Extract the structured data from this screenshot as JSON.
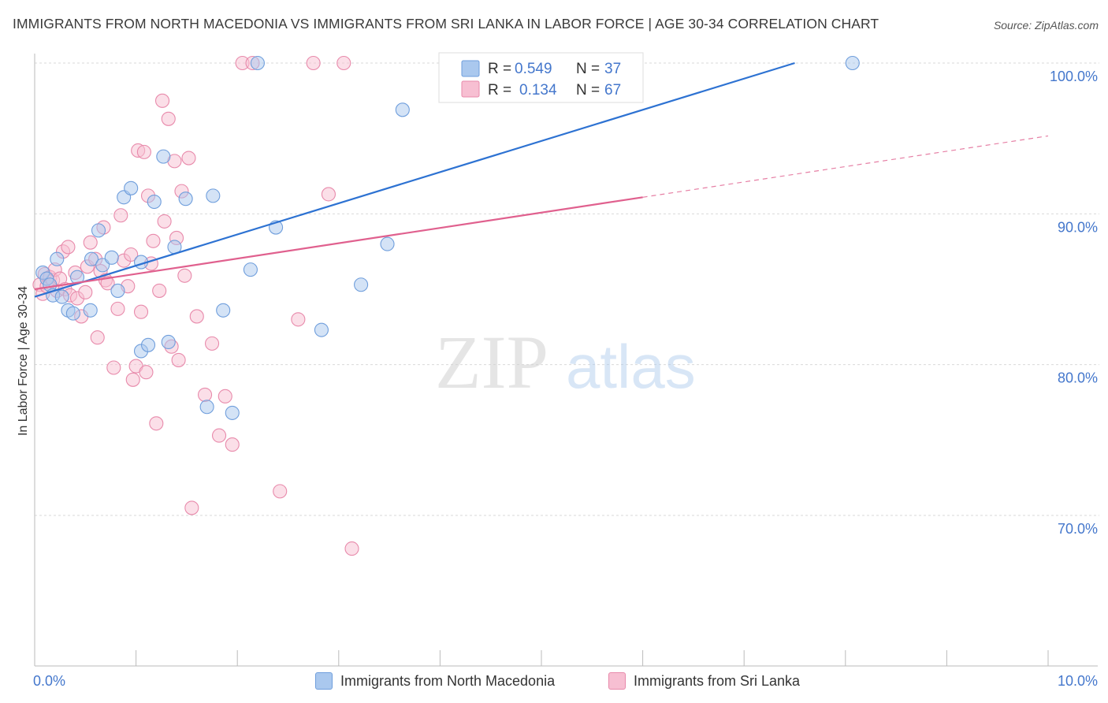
{
  "header": {
    "title": "IMMIGRANTS FROM NORTH MACEDONIA VS IMMIGRANTS FROM SRI LANKA IN LABOR FORCE | AGE 30-34 CORRELATION CHART",
    "source": "Source: ZipAtlas.com"
  },
  "watermark": {
    "zip": "ZIP",
    "atlas": "atlas"
  },
  "colors": {
    "blue_fill": "#aac8ee",
    "blue_stroke": "#6f9edc",
    "blue_line": "#2d72d2",
    "pink_fill": "#f7bfd2",
    "pink_stroke": "#e88aab",
    "pink_line": "#e0608e",
    "axis_label": "#4477cc",
    "grid": "#d9d9d9"
  },
  "legend_top": {
    "rows": [
      {
        "r_label": "R =",
        "r_value": "0.549",
        "n_label": "N =",
        "n_value": "37"
      },
      {
        "r_label": "R =",
        "r_value": "0.134",
        "n_label": "N =",
        "n_value": "67"
      }
    ]
  },
  "legend_bottom": {
    "items": [
      {
        "label": "Immigrants from North Macedonia"
      },
      {
        "label": "Immigrants from Sri Lanka"
      }
    ]
  },
  "chart_data": {
    "type": "scatter",
    "title": "IMMIGRANTS FROM NORTH MACEDONIA VS IMMIGRANTS FROM SRI LANKA IN LABOR FORCE | AGE 30-34 CORRELATION CHART",
    "xlabel": "",
    "ylabel": "In Labor Force | Age 30-34",
    "xlim": [
      0,
      10
    ],
    "ylim": [
      60,
      100
    ],
    "x_tick_labels": [
      "0.0%",
      "10.0%"
    ],
    "y_ticks": [
      70,
      80,
      90,
      100
    ],
    "y_tick_labels": [
      "70.0%",
      "80.0%",
      "90.0%",
      "100.0%"
    ],
    "grid": true,
    "series": [
      {
        "name": "Immigrants from North Macedonia",
        "R": 0.549,
        "N": 37,
        "trend": {
          "x": [
            0.0,
            7.5
          ],
          "y": [
            84.5,
            100.0
          ],
          "dashed_x": []
        },
        "points": [
          [
            0.08,
            86.1
          ],
          [
            0.12,
            85.7
          ],
          [
            0.15,
            85.3
          ],
          [
            0.18,
            84.6
          ],
          [
            0.22,
            87.0
          ],
          [
            0.27,
            84.5
          ],
          [
            0.33,
            83.6
          ],
          [
            0.38,
            83.4
          ],
          [
            0.42,
            85.8
          ],
          [
            0.55,
            83.6
          ],
          [
            0.56,
            87.0
          ],
          [
            0.63,
            88.9
          ],
          [
            0.67,
            86.6
          ],
          [
            0.76,
            87.1
          ],
          [
            0.82,
            84.9
          ],
          [
            0.88,
            91.1
          ],
          [
            0.95,
            91.7
          ],
          [
            1.05,
            80.9
          ],
          [
            1.05,
            86.8
          ],
          [
            1.12,
            81.3
          ],
          [
            1.18,
            90.8
          ],
          [
            1.27,
            93.8
          ],
          [
            1.32,
            81.5
          ],
          [
            1.38,
            87.8
          ],
          [
            1.49,
            91.0
          ],
          [
            1.7,
            77.2
          ],
          [
            1.76,
            91.2
          ],
          [
            1.86,
            83.6
          ],
          [
            1.95,
            76.8
          ],
          [
            2.13,
            86.3
          ],
          [
            2.2,
            100.0
          ],
          [
            2.38,
            89.1
          ],
          [
            2.83,
            82.3
          ],
          [
            3.22,
            85.3
          ],
          [
            3.48,
            88.0
          ],
          [
            3.63,
            96.9
          ],
          [
            8.07,
            100.0
          ]
        ]
      },
      {
        "name": "Immigrants from Sri Lanka",
        "R": 0.134,
        "N": 67,
        "trend": {
          "x": [
            0.0,
            6.0
          ],
          "y": [
            85.0,
            91.1
          ],
          "dashed_x": [
            6.0,
            10.0
          ]
        },
        "points": [
          [
            0.05,
            85.3
          ],
          [
            0.08,
            84.7
          ],
          [
            0.1,
            86.0
          ],
          [
            0.12,
            85.2
          ],
          [
            0.15,
            85.8
          ],
          [
            0.18,
            85.6
          ],
          [
            0.2,
            86.3
          ],
          [
            0.22,
            84.9
          ],
          [
            0.25,
            85.7
          ],
          [
            0.28,
            87.5
          ],
          [
            0.3,
            85.0
          ],
          [
            0.33,
            87.8
          ],
          [
            0.35,
            84.6
          ],
          [
            0.4,
            86.1
          ],
          [
            0.42,
            84.4
          ],
          [
            0.46,
            83.2
          ],
          [
            0.5,
            84.8
          ],
          [
            0.52,
            86.5
          ],
          [
            0.55,
            88.1
          ],
          [
            0.6,
            87.0
          ],
          [
            0.62,
            81.8
          ],
          [
            0.65,
            86.2
          ],
          [
            0.68,
            89.1
          ],
          [
            0.7,
            85.6
          ],
          [
            0.72,
            85.4
          ],
          [
            0.78,
            79.8
          ],
          [
            0.82,
            83.7
          ],
          [
            0.85,
            89.9
          ],
          [
            0.88,
            86.9
          ],
          [
            0.92,
            85.2
          ],
          [
            0.95,
            87.3
          ],
          [
            0.97,
            79.0
          ],
          [
            1.0,
            79.9
          ],
          [
            1.02,
            94.2
          ],
          [
            1.05,
            83.5
          ],
          [
            1.08,
            94.1
          ],
          [
            1.1,
            79.5
          ],
          [
            1.12,
            91.2
          ],
          [
            1.15,
            86.7
          ],
          [
            1.17,
            88.2
          ],
          [
            1.2,
            76.1
          ],
          [
            1.23,
            84.9
          ],
          [
            1.26,
            97.5
          ],
          [
            1.28,
            89.5
          ],
          [
            1.32,
            96.3
          ],
          [
            1.35,
            81.2
          ],
          [
            1.38,
            93.5
          ],
          [
            1.4,
            88.4
          ],
          [
            1.42,
            80.3
          ],
          [
            1.45,
            91.5
          ],
          [
            1.48,
            85.9
          ],
          [
            1.52,
            93.7
          ],
          [
            1.55,
            70.5
          ],
          [
            1.6,
            83.2
          ],
          [
            1.68,
            78.0
          ],
          [
            1.75,
            81.4
          ],
          [
            1.82,
            75.3
          ],
          [
            1.88,
            77.9
          ],
          [
            1.95,
            74.7
          ],
          [
            2.05,
            100.0
          ],
          [
            2.15,
            100.0
          ],
          [
            2.42,
            71.6
          ],
          [
            2.6,
            83.0
          ],
          [
            2.75,
            100.0
          ],
          [
            2.9,
            91.3
          ],
          [
            3.05,
            100.0
          ],
          [
            3.13,
            67.8
          ]
        ]
      }
    ]
  }
}
